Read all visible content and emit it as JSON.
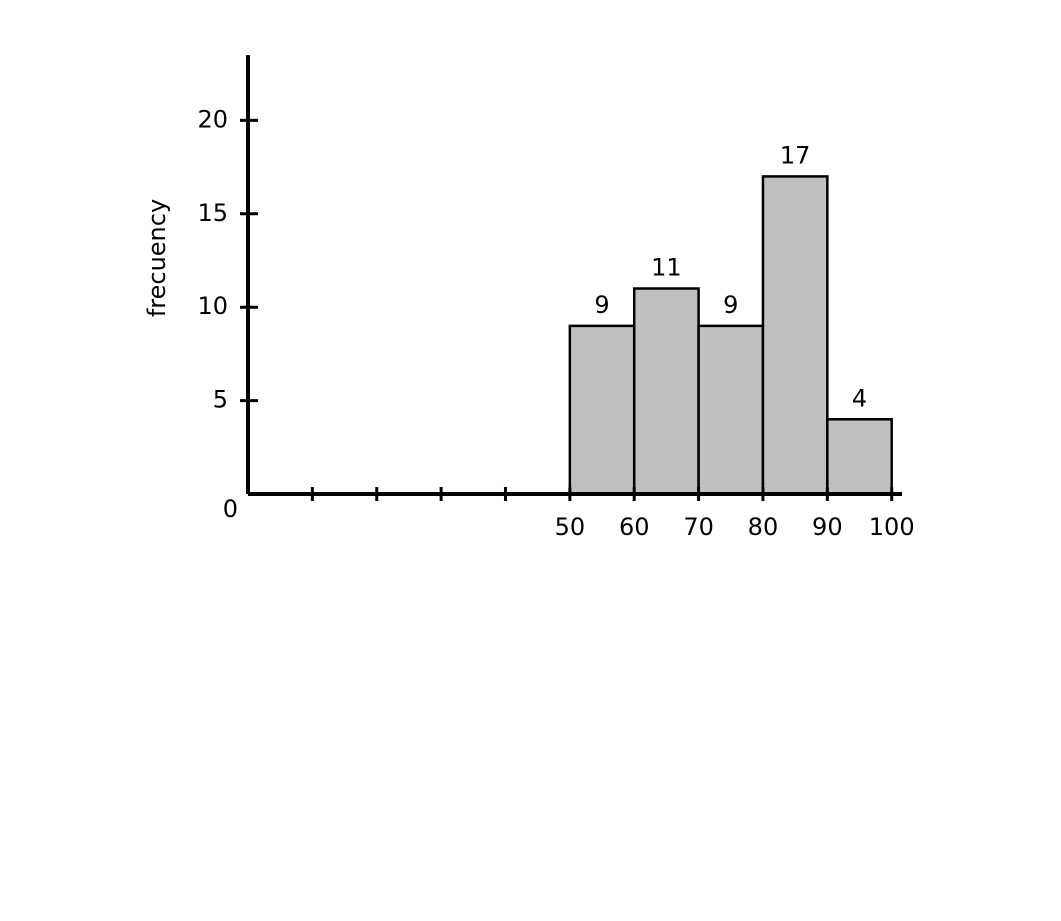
{
  "chart_data": {
    "type": "histogram",
    "bins": [
      50,
      60,
      70,
      80,
      90,
      100
    ],
    "values": [
      9,
      11,
      9,
      17,
      4
    ],
    "color": "#c0c0c0",
    "ylabel": "frecuency",
    "xlim": [
      0,
      101.6
    ],
    "xticks": [
      50,
      60,
      70,
      80,
      90,
      100
    ],
    "xminor_ticks": [
      10,
      20,
      30,
      40
    ],
    "ylim": [
      0,
      23.5
    ],
    "yticks": [
      0,
      5,
      10,
      15,
      20
    ],
    "grid": false
  }
}
